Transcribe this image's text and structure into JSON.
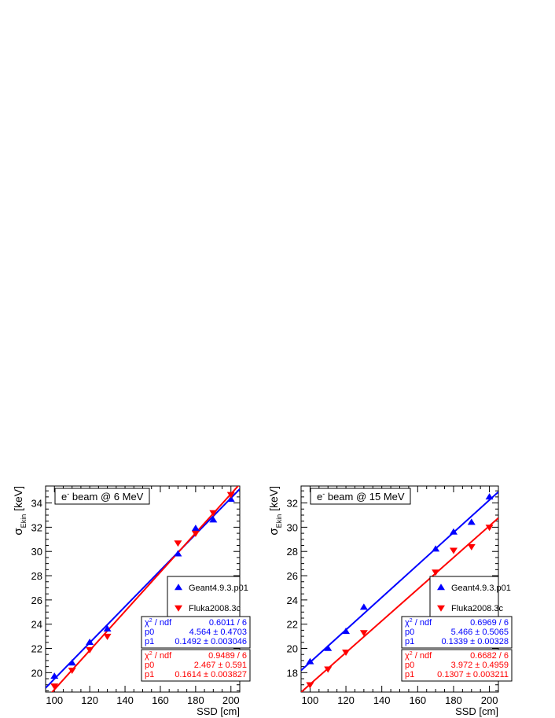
{
  "chart_data": [
    {
      "type": "scatter",
      "title": "e⁻ beam @ 6 MeV",
      "title_parts": {
        "particle": "e",
        "sup": "-",
        "rest": " beam @ 6 MeV"
      },
      "xlabel": "SSD [cm]",
      "ylabel_parts": {
        "sigma": "σ",
        "sub": "Ekin",
        "unit": " [keV]"
      },
      "xlim": [
        95,
        205
      ],
      "ylim": [
        18.4,
        35.4
      ],
      "x_ticks": [
        100,
        120,
        140,
        160,
        180,
        200
      ],
      "y_ticks": [
        20,
        22,
        24,
        26,
        28,
        30,
        32,
        34
      ],
      "grid": false,
      "legend_position": "right",
      "series": [
        {
          "name": "Geant4.9.3.p01",
          "color": "#0000ff",
          "marker": "triangle-up",
          "x": [
            100,
            110,
            120,
            130,
            170,
            180,
            190,
            200
          ],
          "y": [
            19.7,
            20.8,
            22.5,
            23.6,
            29.8,
            31.9,
            32.6,
            34.3
          ],
          "fit": {
            "p0": 4.564,
            "p1": 0.1492
          },
          "stats": [
            {
              "label_base": "χ",
              "label_sup": "2",
              "label_rest": " / ndf",
              "value": "0.6011 / 6"
            },
            {
              "label_base": "p0",
              "label_sup": "",
              "label_rest": "",
              "value": "4.564 ± 0.4703"
            },
            {
              "label_base": "p1",
              "label_sup": "",
              "label_rest": "",
              "value": "0.1492 ± 0.003046"
            }
          ]
        },
        {
          "name": "Fluka2008.3c",
          "color": "#ff0000",
          "marker": "triangle-down",
          "x": [
            100,
            110,
            120,
            130,
            170,
            180,
            190,
            200
          ],
          "y": [
            18.9,
            20.2,
            21.9,
            23.0,
            30.7,
            31.5,
            33.2,
            34.7
          ],
          "fit": {
            "p0": 2.467,
            "p1": 0.1614
          },
          "stats": [
            {
              "label_base": "χ",
              "label_sup": "2",
              "label_rest": " / ndf",
              "value": "0.9489 / 6"
            },
            {
              "label_base": "p0",
              "label_sup": "",
              "label_rest": "",
              "value": "2.467 ± 0.591"
            },
            {
              "label_base": "p1",
              "label_sup": "",
              "label_rest": "",
              "value": "0.1614 ± 0.003827"
            }
          ]
        }
      ]
    },
    {
      "type": "scatter",
      "title": "e⁻ beam @ 15 MeV",
      "title_parts": {
        "particle": "e",
        "sup": "-",
        "rest": " beam @ 15 MeV"
      },
      "xlabel": "SSD [cm]",
      "ylabel_parts": {
        "sigma": "σ",
        "sub": "Ekin",
        "unit": " [keV]"
      },
      "xlim": [
        95,
        205
      ],
      "ylim": [
        16.4,
        33.4
      ],
      "x_ticks": [
        100,
        120,
        140,
        160,
        180,
        200
      ],
      "y_ticks": [
        18,
        20,
        22,
        24,
        26,
        28,
        30,
        32
      ],
      "grid": false,
      "legend_position": "right",
      "series": [
        {
          "name": "Geant4.9.3.p01",
          "color": "#0000ff",
          "marker": "triangle-up",
          "x": [
            100,
            110,
            120,
            130,
            170,
            180,
            190,
            200
          ],
          "y": [
            18.9,
            20.0,
            21.4,
            23.4,
            28.2,
            29.6,
            30.4,
            32.5
          ],
          "fit": {
            "p0": 5.466,
            "p1": 0.1339
          },
          "stats": [
            {
              "label_base": "χ",
              "label_sup": "2",
              "label_rest": " / ndf",
              "value": "0.6969 / 6"
            },
            {
              "label_base": "p0",
              "label_sup": "",
              "label_rest": "",
              "value": "5.466 ± 0.5065"
            },
            {
              "label_base": "p1",
              "label_sup": "",
              "label_rest": "",
              "value": "0.1339 ± 0.00328"
            }
          ]
        },
        {
          "name": "Fluka2008.3c",
          "color": "#ff0000",
          "marker": "triangle-down",
          "x": [
            100,
            110,
            120,
            130,
            170,
            180,
            190,
            200
          ],
          "y": [
            17.0,
            18.3,
            19.7,
            21.3,
            26.3,
            28.1,
            28.4,
            30.0
          ],
          "fit": {
            "p0": 3.972,
            "p1": 0.1307
          },
          "stats": [
            {
              "label_base": "χ",
              "label_sup": "2",
              "label_rest": " / ndf",
              "value": "0.6682 / 6"
            },
            {
              "label_base": "p0",
              "label_sup": "",
              "label_rest": "",
              "value": "3.972 ± 0.4959"
            },
            {
              "label_base": "p1",
              "label_sup": "",
              "label_rest": "",
              "value": "0.1307 ± 0.003211"
            }
          ]
        }
      ]
    }
  ]
}
